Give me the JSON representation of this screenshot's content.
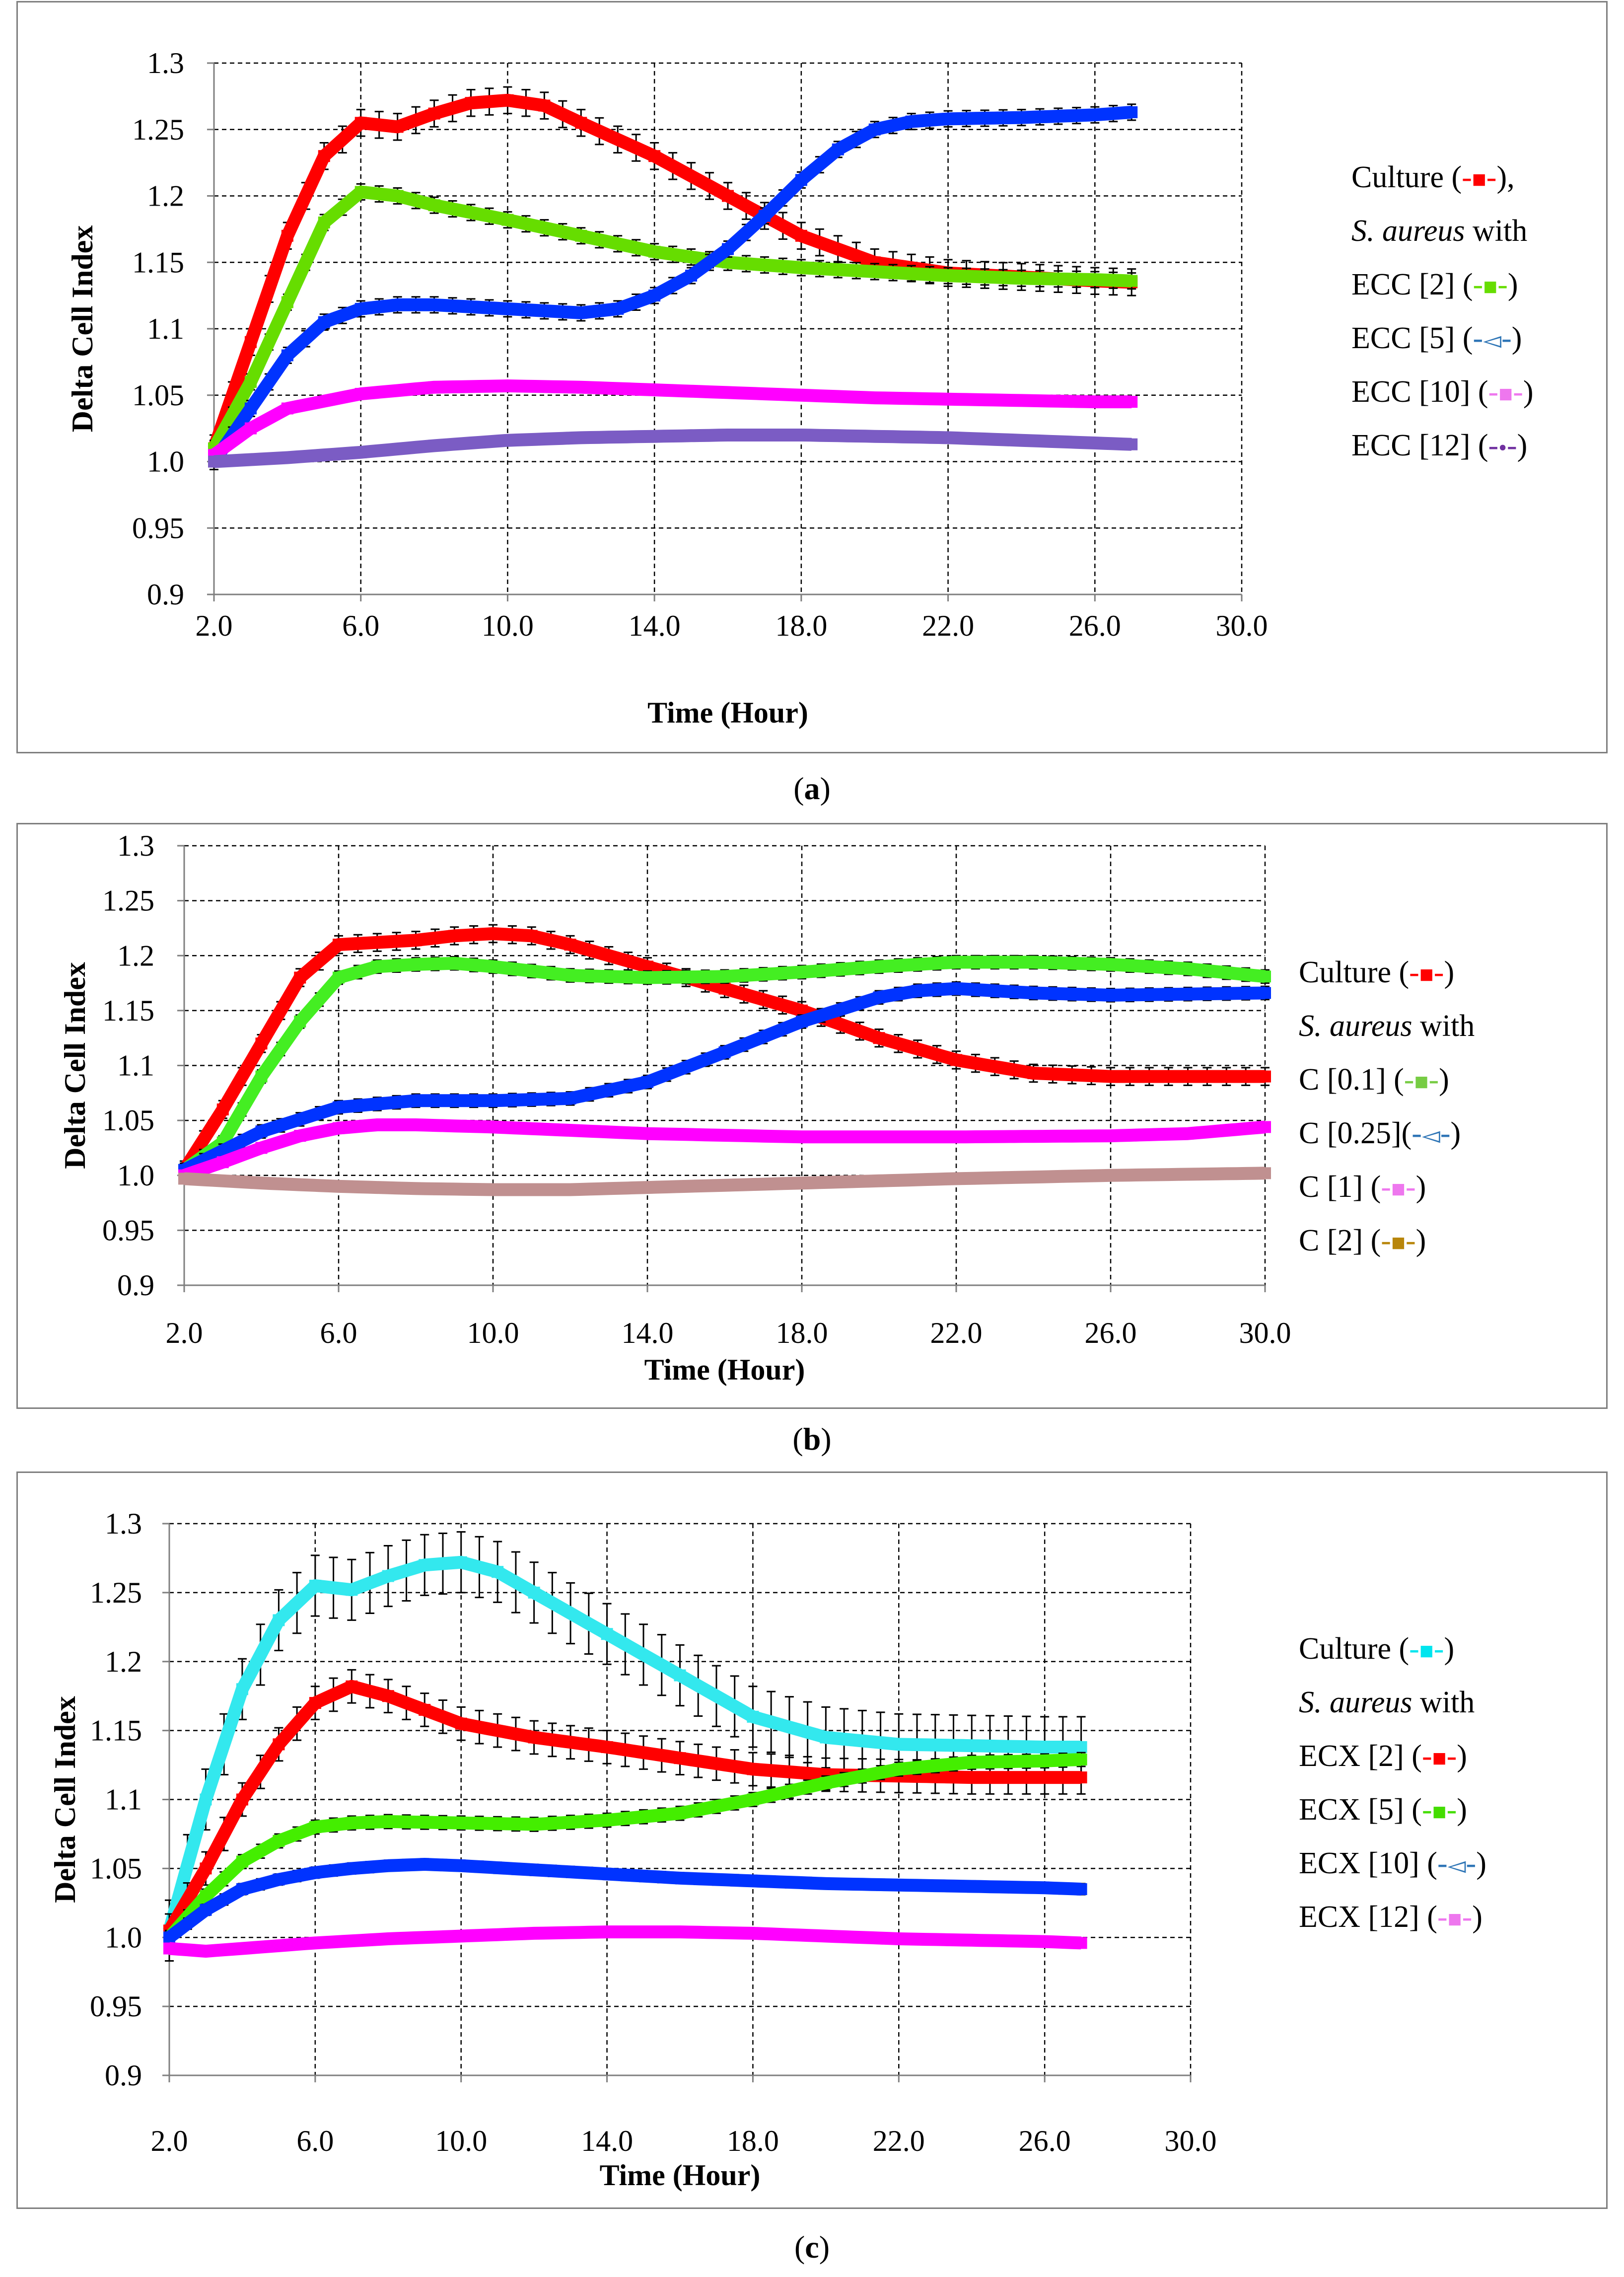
{
  "chart_data": [
    {
      "id": "a",
      "type": "line",
      "caption_label": "a",
      "xlabel": "Time (Hour)",
      "ylabel": "Delta Cell Index",
      "xlim": [
        2.0,
        30.0
      ],
      "ylim": [
        0.9,
        1.3
      ],
      "xticks": [
        "2.0",
        "6.0",
        "10.0",
        "14.0",
        "18.0",
        "22.0",
        "26.0",
        "30.0"
      ],
      "yticks": [
        "0.9",
        "0.95",
        "1.0",
        "1.05",
        "1.1",
        "1.15",
        "1.2",
        "1.25",
        "1.3"
      ],
      "grid": true,
      "legend_position": "right",
      "legend": [
        {
          "pre": "Culture (",
          "mid": "-",
          "marker": "■",
          "post_dash": "-",
          "close": "),",
          "color": "#ff0000"
        },
        {
          "pre": "",
          "italic": "S. aureus",
          "after": " with"
        },
        {
          "pre": "ECC [2] (",
          "mid": "-",
          "marker": "■",
          "post_dash": "-",
          "close": ")",
          "color": "#66dd00"
        },
        {
          "pre": "ECC [5] (",
          "mid": "-",
          "marker": "◅",
          "post_dash": "-",
          "close": ")",
          "color": "#2e75b6"
        },
        {
          "pre": "ECC [10] (",
          "mid": "-",
          "marker": "■",
          "post_dash": "-",
          "close": ")",
          "color": "#ee77ee"
        },
        {
          "pre": "ECC [12] (",
          "mid": "-",
          "marker": "•",
          "post_dash": "-",
          "close": ")",
          "color": "#7030a0"
        }
      ],
      "series": [
        {
          "name": "Culture",
          "color": "#ff0000",
          "err": 0.01,
          "x": [
            2.0,
            3.0,
            4.0,
            5.0,
            6.0,
            7.0,
            8.0,
            9.0,
            10.0,
            11.0,
            12.0,
            14.0,
            16.0,
            18.0,
            20.0,
            22.0,
            24.0,
            26.0,
            27.0
          ],
          "y": [
            1.01,
            1.09,
            1.17,
            1.23,
            1.255,
            1.252,
            1.262,
            1.27,
            1.272,
            1.268,
            1.255,
            1.23,
            1.2,
            1.17,
            1.15,
            1.142,
            1.139,
            1.136,
            1.135
          ]
        },
        {
          "name": "ECC [2]",
          "color": "#66dd00",
          "err": 0.006,
          "x": [
            2.0,
            3.0,
            4.0,
            5.0,
            6.0,
            7.0,
            8.0,
            10.0,
            12.0,
            14.0,
            16.0,
            18.0,
            20.0,
            22.0,
            24.0,
            26.0,
            27.0
          ],
          "y": [
            1.01,
            1.06,
            1.12,
            1.18,
            1.203,
            1.2,
            1.193,
            1.182,
            1.17,
            1.158,
            1.15,
            1.146,
            1.143,
            1.14,
            1.138,
            1.137,
            1.136
          ]
        },
        {
          "name": "ECC [5]",
          "color": "#0033ff",
          "err": 0.006,
          "x": [
            2.0,
            3.0,
            4.0,
            5.0,
            6.0,
            7.0,
            8.0,
            10.0,
            12.0,
            13.0,
            14.0,
            15.0,
            16.0,
            17.0,
            18.0,
            19.0,
            20.0,
            21.0,
            22.0,
            24.0,
            26.0,
            27.0
          ],
          "y": [
            1.0,
            1.04,
            1.08,
            1.105,
            1.115,
            1.118,
            1.118,
            1.115,
            1.112,
            1.115,
            1.125,
            1.14,
            1.16,
            1.185,
            1.212,
            1.235,
            1.25,
            1.256,
            1.258,
            1.259,
            1.261,
            1.263
          ]
        },
        {
          "name": "ECC [10]",
          "color": "#ff00ff",
          "err": 0.003,
          "x": [
            2.0,
            3.0,
            4.0,
            6.0,
            8.0,
            10.0,
            12.0,
            14.0,
            16.0,
            18.0,
            20.0,
            22.0,
            24.0,
            26.0,
            27.0
          ],
          "y": [
            1.005,
            1.025,
            1.04,
            1.051,
            1.056,
            1.057,
            1.056,
            1.054,
            1.052,
            1.05,
            1.048,
            1.047,
            1.046,
            1.045,
            1.045
          ]
        },
        {
          "name": "ECC [12]",
          "color": "#7b5cc4",
          "err": 0.003,
          "x": [
            2.0,
            4.0,
            6.0,
            8.0,
            10.0,
            12.0,
            14.0,
            16.0,
            18.0,
            20.0,
            22.0,
            24.0,
            26.0,
            27.0
          ],
          "y": [
            1.0,
            1.003,
            1.007,
            1.012,
            1.016,
            1.018,
            1.019,
            1.02,
            1.02,
            1.019,
            1.018,
            1.016,
            1.014,
            1.013
          ]
        }
      ]
    },
    {
      "id": "b",
      "type": "line",
      "caption_label": "b",
      "xlabel": "Time (Hour)",
      "ylabel": "Delta Cell Index",
      "xlim": [
        2.0,
        30.0
      ],
      "ylim": [
        0.9,
        1.3
      ],
      "xticks": [
        "2.0",
        "6.0",
        "10.0",
        "14.0",
        "18.0",
        "22.0",
        "26.0",
        "30.0"
      ],
      "yticks": [
        "0.9",
        "0.95",
        "1.0",
        "1.05",
        "1.1",
        "1.15",
        "1.2",
        "1.25",
        "1.3"
      ],
      "grid": true,
      "legend_position": "right",
      "legend": [
        {
          "pre": "Culture (",
          "mid": "-",
          "marker": "■",
          "post_dash": "-",
          "close": ")",
          "color": "#ff0000"
        },
        {
          "pre": "",
          "italic": "S. aureus",
          "after": " with"
        },
        {
          "pre": "C [0.1] (",
          "mid": "-",
          "marker": "■",
          "post_dash": "-",
          "close": ")",
          "color": "#77cc44"
        },
        {
          "pre": "C [0.25](",
          "mid": "-",
          "marker": "◅",
          "post_dash": "-",
          "close": ")",
          "color": "#2e75b6"
        },
        {
          "pre": "C [1] (",
          "mid": "-",
          "marker": "■",
          "post_dash": "-",
          "close": ")",
          "color": "#ee77ee"
        },
        {
          "pre": "C [2] (",
          "mid": "-",
          "marker": "■",
          "post_dash": "-",
          "close": ")",
          "color": "#b8860b"
        }
      ],
      "series": [
        {
          "name": "Culture",
          "color": "#ff0000",
          "err": 0.008,
          "x": [
            2.0,
            3.0,
            4.0,
            5.0,
            6.0,
            7.0,
            8.0,
            9.0,
            10.0,
            11.0,
            12.0,
            14.0,
            16.0,
            18.0,
            20.0,
            22.0,
            24.0,
            26.0,
            28.0,
            30.0
          ],
          "y": [
            1.005,
            1.06,
            1.12,
            1.18,
            1.21,
            1.212,
            1.214,
            1.218,
            1.22,
            1.218,
            1.21,
            1.19,
            1.17,
            1.15,
            1.125,
            1.105,
            1.093,
            1.09,
            1.09,
            1.09
          ]
        },
        {
          "name": "C [0.1]",
          "color": "#44ee22",
          "err": 0.006,
          "x": [
            2.0,
            3.0,
            4.0,
            5.0,
            6.0,
            7.0,
            8.0,
            9.0,
            10.0,
            12.0,
            14.0,
            16.0,
            18.0,
            20.0,
            22.0,
            24.0,
            26.0,
            28.0,
            30.0
          ],
          "y": [
            1.005,
            1.03,
            1.09,
            1.14,
            1.18,
            1.19,
            1.192,
            1.193,
            1.19,
            1.182,
            1.18,
            1.181,
            1.185,
            1.19,
            1.194,
            1.194,
            1.192,
            1.188,
            1.181
          ]
        },
        {
          "name": "C [0.25]",
          "color": "#0033ff",
          "err": 0.006,
          "x": [
            2.0,
            4.0,
            6.0,
            8.0,
            10.0,
            12.0,
            14.0,
            16.0,
            18.0,
            20.0,
            21.0,
            22.0,
            24.0,
            26.0,
            28.0,
            30.0
          ],
          "y": [
            1.005,
            1.04,
            1.062,
            1.068,
            1.068,
            1.07,
            1.085,
            1.112,
            1.14,
            1.162,
            1.168,
            1.17,
            1.166,
            1.164,
            1.165,
            1.166
          ]
        },
        {
          "name": "C [1]",
          "color": "#ff00ff",
          "err": 0.004,
          "x": [
            2.0,
            3.0,
            4.0,
            5.0,
            6.0,
            7.0,
            8.0,
            10.0,
            14.0,
            18.0,
            22.0,
            26.0,
            28.0,
            30.0
          ],
          "y": [
            1.0,
            1.012,
            1.025,
            1.036,
            1.043,
            1.046,
            1.046,
            1.044,
            1.038,
            1.035,
            1.035,
            1.036,
            1.038,
            1.044
          ]
        },
        {
          "name": "C [2]",
          "color": "#c09090",
          "err": 0.004,
          "x": [
            2.0,
            4.0,
            6.0,
            8.0,
            10.0,
            12.0,
            14.0,
            18.0,
            22.0,
            26.0,
            30.0
          ],
          "y": [
            0.997,
            0.993,
            0.99,
            0.988,
            0.987,
            0.987,
            0.989,
            0.993,
            0.997,
            1.0,
            1.002
          ]
        }
      ]
    },
    {
      "id": "c",
      "type": "line",
      "caption_label": "c",
      "xlabel": "Time (Hour)",
      "ylabel": "Delta Cell Index",
      "xlim": [
        2.0,
        30.0
      ],
      "ylim": [
        0.9,
        1.3
      ],
      "xticks": [
        "2.0",
        "6.0",
        "10.0",
        "14.0",
        "18.0",
        "22.0",
        "26.0",
        "30.0"
      ],
      "yticks": [
        "0.9",
        "0.95",
        "1.0",
        "1.05",
        "1.1",
        "1.15",
        "1.2",
        "1.25",
        "1.3"
      ],
      "grid": true,
      "legend_position": "right",
      "legend": [
        {
          "pre": "Culture (",
          "mid": "-",
          "marker": "■",
          "post_dash": "-",
          "close": ")",
          "color": "#00e5ee"
        },
        {
          "pre": "",
          "italic": "S. aureus",
          "after": " with"
        },
        {
          "pre": "ECX [2] (",
          "mid": "-",
          "marker": "■",
          "post_dash": "-",
          "close": ")",
          "color": "#ff0000"
        },
        {
          "pre": "ECX [5] (",
          "mid": "-",
          "marker": "■",
          "post_dash": "-",
          "close": ")",
          "color": "#44dd00"
        },
        {
          "pre": "ECX [10] (",
          "mid": "-",
          "marker": "◅",
          "post_dash": "-",
          "close": ")",
          "color": "#2e75b6"
        },
        {
          "pre": "ECX [12] (",
          "mid": "-",
          "marker": "■",
          "post_dash": "-",
          "close": ")",
          "color": "#ee77ee"
        }
      ],
      "series": [
        {
          "name": "Culture",
          "color": "#33e8ee",
          "err": 0.022,
          "x": [
            2.0,
            3.0,
            4.0,
            5.0,
            6.0,
            7.0,
            8.0,
            9.0,
            10.0,
            11.0,
            12.0,
            14.0,
            16.0,
            18.0,
            20.0,
            22.0,
            24.0,
            26.0,
            27.0
          ],
          "y": [
            1.005,
            1.1,
            1.18,
            1.23,
            1.255,
            1.252,
            1.262,
            1.27,
            1.272,
            1.265,
            1.25,
            1.22,
            1.19,
            1.16,
            1.145,
            1.14,
            1.139,
            1.138,
            1.138
          ]
        },
        {
          "name": "ECX [2]",
          "color": "#ff0000",
          "err": 0.012,
          "x": [
            2.0,
            3.0,
            4.0,
            5.0,
            6.0,
            7.0,
            8.0,
            9.0,
            10.0,
            12.0,
            14.0,
            16.0,
            18.0,
            20.0,
            22.0,
            24.0,
            26.0,
            27.0
          ],
          "y": [
            1.005,
            1.05,
            1.1,
            1.14,
            1.17,
            1.182,
            1.175,
            1.165,
            1.155,
            1.145,
            1.138,
            1.13,
            1.122,
            1.118,
            1.117,
            1.116,
            1.116,
            1.116
          ]
        },
        {
          "name": "ECX [5]",
          "color": "#44ee00",
          "err": 0.005,
          "x": [
            2.0,
            3.0,
            4.0,
            5.0,
            6.0,
            7.0,
            8.0,
            10.0,
            12.0,
            14.0,
            16.0,
            18.0,
            20.0,
            22.0,
            24.0,
            26.0,
            27.0
          ],
          "y": [
            1.0,
            1.03,
            1.055,
            1.07,
            1.08,
            1.083,
            1.084,
            1.083,
            1.082,
            1.085,
            1.09,
            1.1,
            1.112,
            1.122,
            1.127,
            1.128,
            1.129
          ]
        },
        {
          "name": "ECX [10]",
          "color": "#0033ff",
          "err": 0.004,
          "x": [
            2.0,
            3.0,
            4.0,
            5.0,
            6.0,
            7.0,
            8.0,
            9.0,
            10.0,
            12.0,
            14.0,
            16.0,
            18.0,
            20.0,
            22.0,
            24.0,
            26.0,
            27.0
          ],
          "y": [
            1.0,
            1.02,
            1.035,
            1.042,
            1.047,
            1.05,
            1.052,
            1.053,
            1.052,
            1.049,
            1.046,
            1.043,
            1.041,
            1.039,
            1.038,
            1.037,
            1.036,
            1.035
          ]
        },
        {
          "name": "ECX [12]",
          "color": "#ff00ff",
          "err": 0.003,
          "x": [
            2.0,
            3.0,
            4.0,
            6.0,
            8.0,
            10.0,
            12.0,
            14.0,
            16.0,
            18.0,
            20.0,
            22.0,
            24.0,
            26.0,
            27.0
          ],
          "y": [
            0.992,
            0.99,
            0.992,
            0.996,
            0.999,
            1.001,
            1.003,
            1.004,
            1.004,
            1.003,
            1.001,
            0.999,
            0.998,
            0.997,
            0.996
          ]
        }
      ]
    }
  ]
}
